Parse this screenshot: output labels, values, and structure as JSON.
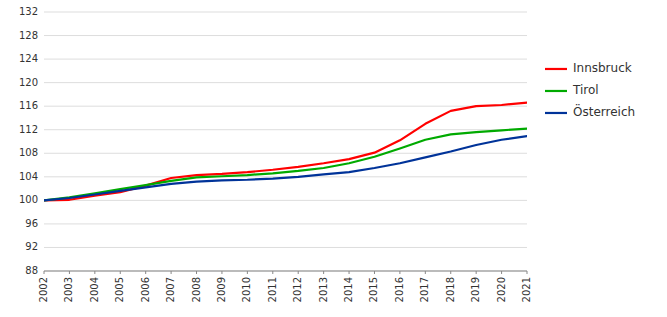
{
  "chart_data": {
    "type": "line",
    "x": [
      2002,
      2003,
      2004,
      2005,
      2006,
      2007,
      2008,
      2009,
      2010,
      2011,
      2012,
      2013,
      2014,
      2015,
      2016,
      2017,
      2018,
      2019,
      2020,
      2021
    ],
    "series": [
      {
        "name": "Innsbruck",
        "color": "#ff0000",
        "values": [
          100.0,
          100.1,
          100.8,
          101.4,
          102.5,
          103.8,
          104.3,
          104.5,
          104.8,
          105.2,
          105.7,
          106.3,
          107.0,
          108.1,
          110.2,
          113.0,
          115.2,
          116.0,
          116.2,
          116.6
        ]
      },
      {
        "name": "Tirol",
        "color": "#00aa00",
        "values": [
          100.0,
          100.5,
          101.2,
          101.9,
          102.6,
          103.3,
          103.9,
          104.1,
          104.3,
          104.6,
          105.0,
          105.5,
          106.3,
          107.4,
          108.8,
          110.3,
          111.2,
          111.6,
          111.9,
          112.2
        ]
      },
      {
        "name": "Österreich",
        "color": "#003399",
        "values": [
          100.0,
          100.4,
          101.0,
          101.6,
          102.2,
          102.8,
          103.2,
          103.4,
          103.5,
          103.7,
          104.0,
          104.4,
          104.8,
          105.5,
          106.3,
          107.3,
          108.3,
          109.4,
          110.3,
          110.9
        ]
      }
    ],
    "xlim": [
      2002,
      2021
    ],
    "xticks": [
      2002,
      2003,
      2004,
      2005,
      2006,
      2007,
      2008,
      2009,
      2010,
      2011,
      2012,
      2013,
      2014,
      2015,
      2016,
      2017,
      2018,
      2019,
      2020,
      2021
    ],
    "ylim": [
      88,
      132
    ],
    "yticks": [
      88,
      92,
      96,
      100,
      104,
      108,
      112,
      116,
      120,
      124,
      128,
      132
    ],
    "grid": true,
    "legend": "right"
  }
}
